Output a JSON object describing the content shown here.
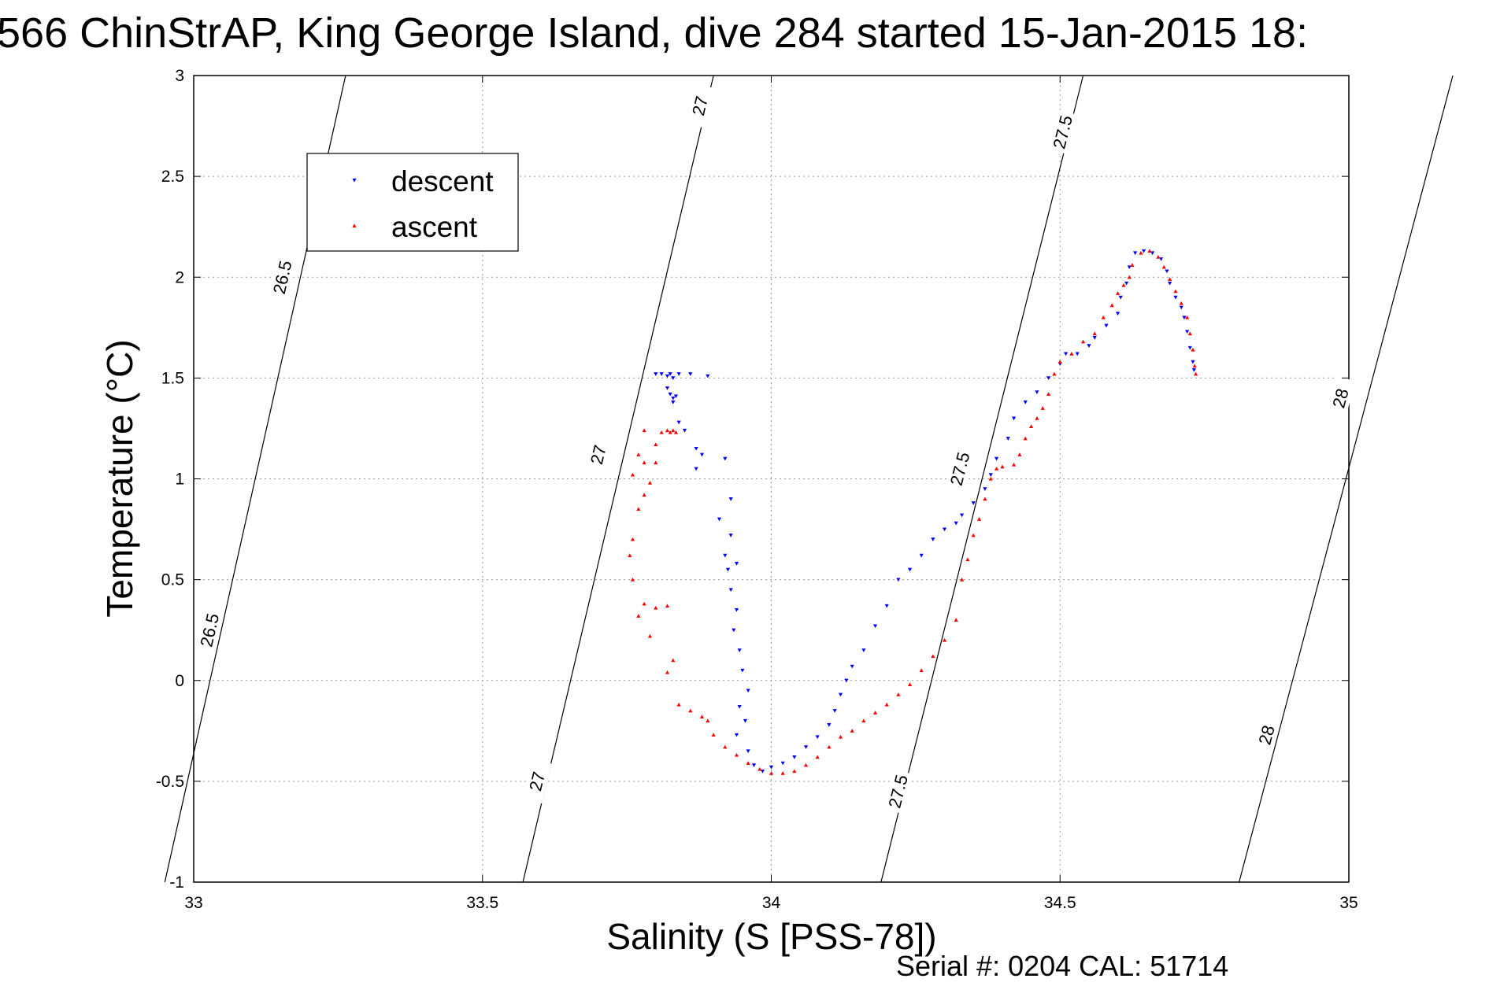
{
  "chart_data": {
    "type": "scatter",
    "title": "566 ChinStrAP, King George Island, dive 284 started 15-Jan-2015 18:",
    "xlabel": "Salinity (S [PSS-78])",
    "ylabel": "Temperature (°C)",
    "xlim": [
      33,
      35
    ],
    "ylim": [
      -1,
      3
    ],
    "xticks": [
      "33",
      "33.5",
      "34",
      "34.5",
      "35"
    ],
    "yticks": [
      "-1",
      "-0.5",
      "0",
      "0.5",
      "1",
      "1.5",
      "2",
      "2.5",
      "3"
    ],
    "grid": true,
    "legend": {
      "position": "top-left",
      "entries": [
        "descent",
        "ascent"
      ]
    },
    "footer": "Serial #: 0204  CAL: 51714",
    "colors": {
      "descent": "#0000ff",
      "ascent": "#ff0000",
      "isopycnal": "#000000",
      "grid": "#999999"
    },
    "isopycnals": [
      {
        "label": "26.5",
        "x_at_top": 33.263,
        "x_at_bottom": 32.95,
        "labels_at": [
          [
            33.153,
            2.0
          ],
          [
            33.027,
            0.25
          ]
        ]
      },
      {
        "label": "27",
        "x_at_top": 33.9,
        "x_at_bottom": 33.57,
        "labels_at": [
          [
            33.876,
            2.85
          ],
          [
            33.7,
            1.12
          ],
          [
            33.594,
            -0.5
          ]
        ]
      },
      {
        "label": "27.5",
        "x_at_top": 34.54,
        "x_at_bottom": 34.19,
        "labels_at": [
          [
            34.504,
            2.72
          ],
          [
            34.326,
            1.05
          ],
          [
            34.219,
            -0.55
          ]
        ]
      },
      {
        "label": "28",
        "x_at_top": 35.18,
        "x_at_bottom": 34.81,
        "labels_at": [
          [
            34.985,
            1.4
          ],
          [
            34.857,
            -0.27
          ]
        ]
      }
    ],
    "series": [
      {
        "name": "descent",
        "marker": "triangle-down",
        "points": [
          [
            33.8,
            1.52
          ],
          [
            33.81,
            1.52
          ],
          [
            33.82,
            1.51
          ],
          [
            33.825,
            1.52
          ],
          [
            33.83,
            1.5
          ],
          [
            33.84,
            1.52
          ],
          [
            33.86,
            1.52
          ],
          [
            33.89,
            1.51
          ],
          [
            33.82,
            1.45
          ],
          [
            33.825,
            1.42
          ],
          [
            33.83,
            1.4
          ],
          [
            33.835,
            1.41
          ],
          [
            33.83,
            1.38
          ],
          [
            33.84,
            1.28
          ],
          [
            33.85,
            1.24
          ],
          [
            33.87,
            1.15
          ],
          [
            33.88,
            1.12
          ],
          [
            33.92,
            1.1
          ],
          [
            33.87,
            1.05
          ],
          [
            33.93,
            0.9
          ],
          [
            33.91,
            0.8
          ],
          [
            33.93,
            0.72
          ],
          [
            33.92,
            0.62
          ],
          [
            33.94,
            0.58
          ],
          [
            33.925,
            0.55
          ],
          [
            33.93,
            0.45
          ],
          [
            33.94,
            0.35
          ],
          [
            33.935,
            0.25
          ],
          [
            33.945,
            0.15
          ],
          [
            33.95,
            0.05
          ],
          [
            33.96,
            -0.05
          ],
          [
            33.945,
            -0.13
          ],
          [
            33.955,
            -0.2
          ],
          [
            33.94,
            -0.27
          ],
          [
            33.96,
            -0.35
          ],
          [
            33.97,
            -0.42
          ],
          [
            33.985,
            -0.45
          ],
          [
            34.0,
            -0.43
          ],
          [
            34.02,
            -0.41
          ],
          [
            34.04,
            -0.38
          ],
          [
            34.06,
            -0.33
          ],
          [
            34.08,
            -0.28
          ],
          [
            34.1,
            -0.22
          ],
          [
            34.11,
            -0.15
          ],
          [
            34.12,
            -0.07
          ],
          [
            34.13,
            0.0
          ],
          [
            34.14,
            0.07
          ],
          [
            34.16,
            0.15
          ],
          [
            34.18,
            0.27
          ],
          [
            34.2,
            0.37
          ],
          [
            34.22,
            0.5
          ],
          [
            34.24,
            0.55
          ],
          [
            34.26,
            0.62
          ],
          [
            34.28,
            0.7
          ],
          [
            34.3,
            0.75
          ],
          [
            34.32,
            0.78
          ],
          [
            34.33,
            0.82
          ],
          [
            34.35,
            0.88
          ],
          [
            34.37,
            0.95
          ],
          [
            34.38,
            1.02
          ],
          [
            34.39,
            1.1
          ],
          [
            34.41,
            1.2
          ],
          [
            34.42,
            1.3
          ],
          [
            34.44,
            1.38
          ],
          [
            34.46,
            1.43
          ],
          [
            34.48,
            1.5
          ],
          [
            34.5,
            1.57
          ],
          [
            34.51,
            1.62
          ],
          [
            34.53,
            1.62
          ],
          [
            34.55,
            1.66
          ],
          [
            34.56,
            1.7
          ],
          [
            34.58,
            1.76
          ],
          [
            34.6,
            1.82
          ],
          [
            34.605,
            1.9
          ],
          [
            34.615,
            1.97
          ],
          [
            34.62,
            2.05
          ],
          [
            34.63,
            2.12
          ],
          [
            34.645,
            2.13
          ],
          [
            34.66,
            2.12
          ],
          [
            34.675,
            2.09
          ],
          [
            34.685,
            2.03
          ],
          [
            34.69,
            1.97
          ],
          [
            34.7,
            1.9
          ],
          [
            34.71,
            1.85
          ],
          [
            34.715,
            1.8
          ],
          [
            34.72,
            1.73
          ],
          [
            34.725,
            1.65
          ],
          [
            34.73,
            1.58
          ],
          [
            34.732,
            1.54
          ]
        ]
      },
      {
        "name": "ascent",
        "marker": "triangle-up",
        "points": [
          [
            33.82,
            1.24
          ],
          [
            33.825,
            1.23
          ],
          [
            33.83,
            1.24
          ],
          [
            33.835,
            1.23
          ],
          [
            33.81,
            1.23
          ],
          [
            33.78,
            1.24
          ],
          [
            33.8,
            1.17
          ],
          [
            33.77,
            1.12
          ],
          [
            33.78,
            1.08
          ],
          [
            33.8,
            1.08
          ],
          [
            33.76,
            1.02
          ],
          [
            33.79,
            0.98
          ],
          [
            33.78,
            0.92
          ],
          [
            33.77,
            0.85
          ],
          [
            33.76,
            0.7
          ],
          [
            33.755,
            0.62
          ],
          [
            33.76,
            0.5
          ],
          [
            33.78,
            0.38
          ],
          [
            33.8,
            0.36
          ],
          [
            33.82,
            0.37
          ],
          [
            33.77,
            0.32
          ],
          [
            33.79,
            0.22
          ],
          [
            33.83,
            0.1
          ],
          [
            33.82,
            0.04
          ],
          [
            33.84,
            -0.12
          ],
          [
            33.86,
            -0.15
          ],
          [
            33.88,
            -0.18
          ],
          [
            33.89,
            -0.2
          ],
          [
            33.9,
            -0.27
          ],
          [
            33.92,
            -0.33
          ],
          [
            33.94,
            -0.37
          ],
          [
            33.96,
            -0.41
          ],
          [
            33.98,
            -0.44
          ],
          [
            34.0,
            -0.46
          ],
          [
            34.02,
            -0.46
          ],
          [
            34.04,
            -0.45
          ],
          [
            34.06,
            -0.42
          ],
          [
            34.08,
            -0.38
          ],
          [
            34.1,
            -0.33
          ],
          [
            34.12,
            -0.28
          ],
          [
            34.14,
            -0.25
          ],
          [
            34.16,
            -0.2
          ],
          [
            34.18,
            -0.16
          ],
          [
            34.2,
            -0.12
          ],
          [
            34.22,
            -0.07
          ],
          [
            34.24,
            -0.02
          ],
          [
            34.26,
            0.05
          ],
          [
            34.28,
            0.12
          ],
          [
            34.3,
            0.2
          ],
          [
            34.32,
            0.3
          ],
          [
            34.33,
            0.5
          ],
          [
            34.34,
            0.6
          ],
          [
            34.35,
            0.72
          ],
          [
            34.36,
            0.8
          ],
          [
            34.37,
            0.9
          ],
          [
            34.38,
            1.0
          ],
          [
            34.39,
            1.05
          ],
          [
            34.4,
            1.06
          ],
          [
            34.42,
            1.07
          ],
          [
            34.43,
            1.12
          ],
          [
            34.44,
            1.2
          ],
          [
            34.45,
            1.26
          ],
          [
            34.46,
            1.3
          ],
          [
            34.47,
            1.35
          ],
          [
            34.48,
            1.42
          ],
          [
            34.49,
            1.52
          ],
          [
            34.5,
            1.58
          ],
          [
            34.52,
            1.62
          ],
          [
            34.54,
            1.68
          ],
          [
            34.56,
            1.72
          ],
          [
            34.575,
            1.8
          ],
          [
            34.59,
            1.86
          ],
          [
            34.6,
            1.92
          ],
          [
            34.61,
            1.96
          ],
          [
            34.62,
            2.0
          ],
          [
            34.625,
            2.06
          ],
          [
            34.64,
            2.12
          ],
          [
            34.655,
            2.13
          ],
          [
            34.67,
            2.1
          ],
          [
            34.68,
            2.05
          ],
          [
            34.69,
            1.99
          ],
          [
            34.7,
            1.93
          ],
          [
            34.71,
            1.87
          ],
          [
            34.72,
            1.8
          ],
          [
            34.725,
            1.72
          ],
          [
            34.73,
            1.64
          ],
          [
            34.733,
            1.56
          ],
          [
            34.735,
            1.52
          ]
        ]
      }
    ]
  }
}
